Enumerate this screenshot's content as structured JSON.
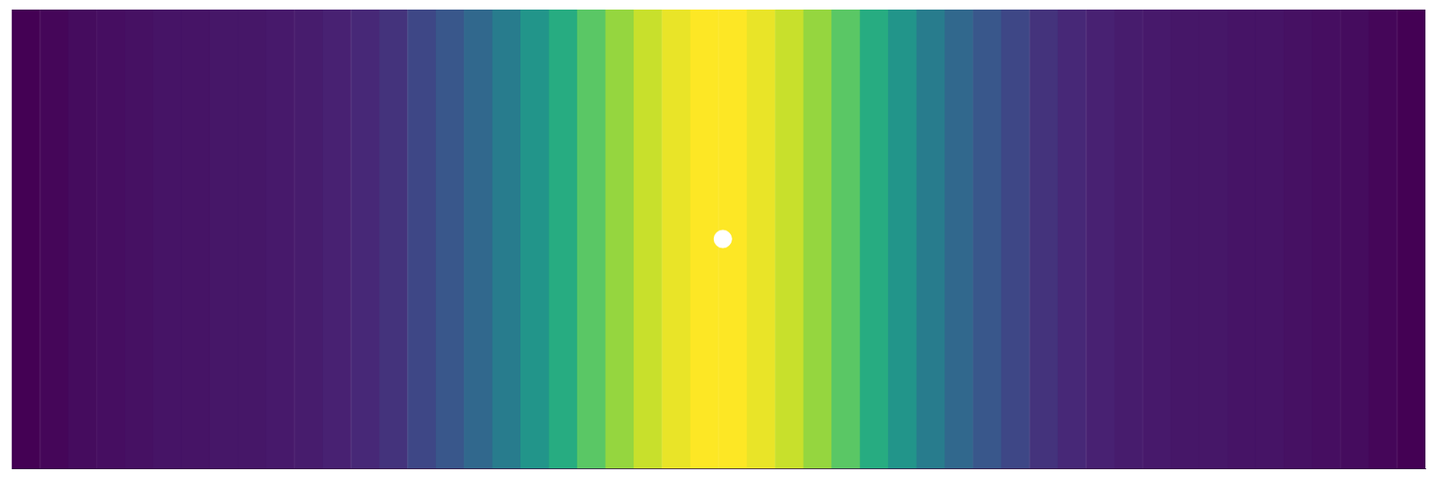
{
  "chart_data": {
    "type": "heatmap",
    "color": "viridis",
    "grid": false,
    "tick_labels": false,
    "xlim": [
      0,
      100
    ],
    "ylim": [
      0,
      100
    ],
    "bins": [
      0,
      2,
      4,
      6,
      8,
      10,
      12,
      14,
      16,
      18,
      20,
      22,
      24,
      26,
      28,
      30,
      32,
      34,
      36,
      38,
      40,
      42,
      44,
      46,
      48,
      50,
      52,
      54,
      56,
      58,
      60,
      62,
      64,
      66,
      68,
      70,
      72,
      74,
      76,
      78,
      80,
      82,
      84,
      86,
      88,
      90,
      92,
      94,
      96,
      98,
      100
    ],
    "values": [
      0,
      0.02,
      0.04,
      0.05,
      0.06,
      0.07,
      0.07,
      0.08,
      0.08,
      0.09,
      0.1,
      0.12,
      0.14,
      0.17,
      0.22,
      0.27,
      0.34,
      0.42,
      0.52,
      0.62,
      0.74,
      0.84,
      0.92,
      0.97,
      1,
      1,
      0.97,
      0.92,
      0.84,
      0.74,
      0.62,
      0.52,
      0.42,
      0.34,
      0.27,
      0.22,
      0.17,
      0.14,
      0.12,
      0.1,
      0.09,
      0.08,
      0.08,
      0.07,
      0.07,
      0.06,
      0.05,
      0.04,
      0.02,
      0
    ],
    "series": [
      {
        "type": "scatter",
        "color": "#ffffff",
        "marker": "circle",
        "x": [
          50.3
        ],
        "y": [
          50
        ]
      }
    ]
  }
}
